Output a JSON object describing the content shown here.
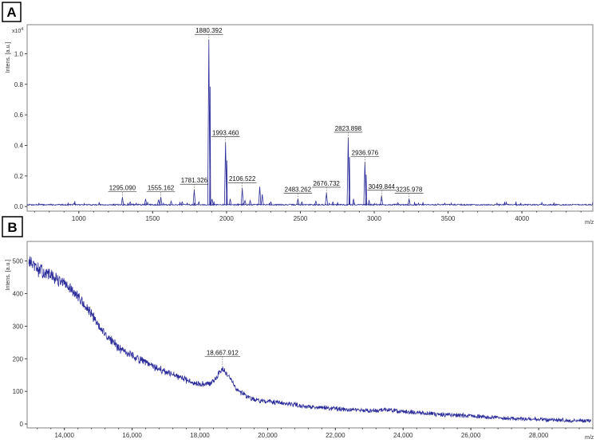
{
  "chart_data": [
    {
      "panel": "A",
      "type": "line",
      "ylabel": "Intens. [a.u.]",
      "xlabel": "m/z",
      "y_multiplier": "x10",
      "y_multiplier_exp": "4",
      "xlim": [
        650,
        4480
      ],
      "ylim": [
        -0.03,
        1.19
      ],
      "xticks": [
        1000,
        1500,
        2000,
        2500,
        3000,
        3500,
        4000
      ],
      "xtick_labels": [
        "1000",
        "1500",
        "2000",
        "2500",
        "3000",
        "3500",
        "4000"
      ],
      "yticks": [
        0.0,
        0.2,
        0.4,
        0.6,
        0.8,
        1.0
      ],
      "ytick_labels": [
        "0.0",
        "0.2",
        "0.4",
        "0.6",
        "0.8",
        "1.0"
      ],
      "baseline": 0.012,
      "noise": 0.004,
      "peaks": [
        {
          "x": 1295.09,
          "y": 0.06,
          "label": "1295.090"
        },
        {
          "x": 1348.0,
          "y": 0.03
        },
        {
          "x": 1452.0,
          "y": 0.05
        },
        {
          "x": 1540.0,
          "y": 0.045
        },
        {
          "x": 1555.162,
          "y": 0.06,
          "label": "1555.162"
        },
        {
          "x": 1625.0,
          "y": 0.035
        },
        {
          "x": 1700.0,
          "y": 0.03
        },
        {
          "x": 1781.326,
          "y": 0.11,
          "label": "1781.326"
        },
        {
          "x": 1880.392,
          "y": 1.09,
          "label": "1880.392"
        },
        {
          "x": 1902.0,
          "y": 0.05
        },
        {
          "x": 1993.46,
          "y": 0.42,
          "label": "1993.460"
        },
        {
          "x": 2025.0,
          "y": 0.05
        },
        {
          "x": 2106.522,
          "y": 0.12,
          "label": "2106.522"
        },
        {
          "x": 2125.0,
          "y": 0.04
        },
        {
          "x": 2160.0,
          "y": 0.04
        },
        {
          "x": 2225.0,
          "y": 0.13
        },
        {
          "x": 2242.0,
          "y": 0.08
        },
        {
          "x": 2300.0,
          "y": 0.03
        },
        {
          "x": 2483.262,
          "y": 0.05,
          "label": "2483.262"
        },
        {
          "x": 2510.0,
          "y": 0.03
        },
        {
          "x": 2605.0,
          "y": 0.035
        },
        {
          "x": 2676.732,
          "y": 0.09,
          "label": "2676.732"
        },
        {
          "x": 2720.0,
          "y": 0.03
        },
        {
          "x": 2823.898,
          "y": 0.45,
          "label": "2823.898"
        },
        {
          "x": 2860.0,
          "y": 0.05
        },
        {
          "x": 2936.976,
          "y": 0.29,
          "label": "2936.976"
        },
        {
          "x": 2965.0,
          "y": 0.04
        },
        {
          "x": 3049.844,
          "y": 0.07,
          "label": "3049.844"
        },
        {
          "x": 3160.0,
          "y": 0.025
        },
        {
          "x": 3235.978,
          "y": 0.05,
          "label": "3235.978"
        },
        {
          "x": 3330.0,
          "y": 0.02
        }
      ]
    },
    {
      "panel": "B",
      "type": "line",
      "ylabel": "Intens. [a.u.]",
      "xlabel": "m/z",
      "xlim": [
        12900,
        29600
      ],
      "ylim": [
        -12,
        560
      ],
      "xticks": [
        14000,
        16000,
        18000,
        20000,
        22000,
        24000,
        26000,
        28000
      ],
      "xtick_labels": [
        "14,000",
        "16,000",
        "18,000",
        "20,000",
        "22,000",
        "24,000",
        "26,000",
        "28,000"
      ],
      "yticks": [
        0,
        100,
        200,
        300,
        400,
        500
      ],
      "ytick_labels": [
        "0",
        "100",
        "200",
        "300",
        "400",
        "500"
      ],
      "envelope": [
        [
          12950,
          500
        ],
        [
          13200,
          475
        ],
        [
          13600,
          455
        ],
        [
          14000,
          430
        ],
        [
          14400,
          390
        ],
        [
          14800,
          335
        ],
        [
          15200,
          275
        ],
        [
          15600,
          235
        ],
        [
          16000,
          210
        ],
        [
          16400,
          188
        ],
        [
          16800,
          168
        ],
        [
          17200,
          150
        ],
        [
          17600,
          135
        ],
        [
          18000,
          122
        ],
        [
          18300,
          122
        ],
        [
          18500,
          142
        ],
        [
          18667.912,
          172
        ],
        [
          18850,
          150
        ],
        [
          19100,
          105
        ],
        [
          19500,
          78
        ],
        [
          20000,
          68
        ],
        [
          21000,
          56
        ],
        [
          22000,
          46
        ],
        [
          23000,
          40
        ],
        [
          23600,
          44
        ],
        [
          24000,
          38
        ],
        [
          25000,
          30
        ],
        [
          26000,
          24
        ],
        [
          27000,
          18
        ],
        [
          28000,
          14
        ],
        [
          29000,
          10
        ],
        [
          29550,
          10
        ]
      ],
      "noise": 14,
      "peaks": [
        {
          "x": 18667.912,
          "y": 190,
          "label": "18,667.912"
        }
      ]
    }
  ],
  "panels": [
    {
      "label": "A"
    },
    {
      "label": "B"
    }
  ]
}
